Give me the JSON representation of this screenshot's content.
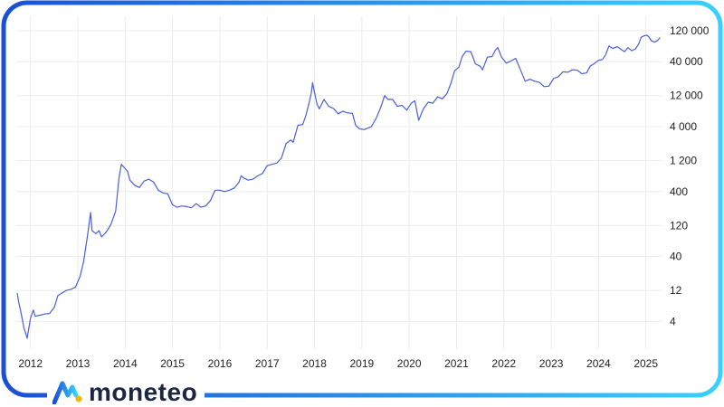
{
  "brand": {
    "name": "moneteo",
    "colors": {
      "gradient_start": "#1a4fd6",
      "gradient_end": "#39d0ff",
      "text": "#1c2541"
    }
  },
  "chart_data": {
    "type": "line",
    "title": "",
    "xlabel": "",
    "ylabel": "",
    "y_scale": "log",
    "grid": true,
    "legend": "none",
    "line_color": "#4a5fd4",
    "xlim": [
      2011.7,
      2025.35
    ],
    "ylim": [
      1.5,
      200000
    ],
    "x_ticks": [
      {
        "value": 2012,
        "label": "2012"
      },
      {
        "value": 2013,
        "label": "2013"
      },
      {
        "value": 2014,
        "label": "2014"
      },
      {
        "value": 2015,
        "label": "2015"
      },
      {
        "value": 2016,
        "label": "2016"
      },
      {
        "value": 2017,
        "label": "2017"
      },
      {
        "value": 2018,
        "label": "2018"
      },
      {
        "value": 2019,
        "label": "2019"
      },
      {
        "value": 2020,
        "label": "2020"
      },
      {
        "value": 2021,
        "label": "2021"
      },
      {
        "value": 2022,
        "label": "2022"
      },
      {
        "value": 2023,
        "label": "2023"
      },
      {
        "value": 2024,
        "label": "2024"
      },
      {
        "value": 2025,
        "label": "2025"
      }
    ],
    "y_ticks": [
      {
        "value": 4,
        "label": "4"
      },
      {
        "value": 12,
        "label": "12"
      },
      {
        "value": 40,
        "label": "40"
      },
      {
        "value": 120,
        "label": "120"
      },
      {
        "value": 400,
        "label": "400"
      },
      {
        "value": 1200,
        "label": "1 200"
      },
      {
        "value": 4000,
        "label": "4 000"
      },
      {
        "value": 12000,
        "label": "12 000"
      },
      {
        "value": 40000,
        "label": "40 000"
      },
      {
        "value": 120000,
        "label": "120 000"
      }
    ],
    "series": [
      {
        "points": [
          [
            2011.72,
            11
          ],
          [
            2011.75,
            8
          ],
          [
            2011.8,
            5.5
          ],
          [
            2011.86,
            3.2
          ],
          [
            2011.9,
            2.6
          ],
          [
            2011.93,
            2.2
          ],
          [
            2012.0,
            4.5
          ],
          [
            2012.06,
            6
          ],
          [
            2012.1,
            4.8
          ],
          [
            2012.2,
            5
          ],
          [
            2012.3,
            5.2
          ],
          [
            2012.4,
            5.3
          ],
          [
            2012.5,
            6.5
          ],
          [
            2012.58,
            10
          ],
          [
            2012.67,
            11
          ],
          [
            2012.75,
            12
          ],
          [
            2012.85,
            12.5
          ],
          [
            2012.95,
            13.5
          ],
          [
            2013.05,
            20
          ],
          [
            2013.12,
            33
          ],
          [
            2013.2,
            80
          ],
          [
            2013.27,
            190
          ],
          [
            2013.3,
            100
          ],
          [
            2013.38,
            90
          ],
          [
            2013.45,
            100
          ],
          [
            2013.5,
            80
          ],
          [
            2013.6,
            95
          ],
          [
            2013.7,
            125
          ],
          [
            2013.8,
            200
          ],
          [
            2013.87,
            650
          ],
          [
            2013.92,
            1050
          ],
          [
            2014.0,
            900
          ],
          [
            2014.05,
            820
          ],
          [
            2014.1,
            600
          ],
          [
            2014.2,
            500
          ],
          [
            2014.3,
            460
          ],
          [
            2014.4,
            580
          ],
          [
            2014.5,
            620
          ],
          [
            2014.6,
            560
          ],
          [
            2014.7,
            420
          ],
          [
            2014.8,
            380
          ],
          [
            2014.9,
            370
          ],
          [
            2015.0,
            250
          ],
          [
            2015.1,
            230
          ],
          [
            2015.2,
            240
          ],
          [
            2015.3,
            235
          ],
          [
            2015.4,
            225
          ],
          [
            2015.5,
            260
          ],
          [
            2015.6,
            230
          ],
          [
            2015.7,
            240
          ],
          [
            2015.8,
            290
          ],
          [
            2015.9,
            420
          ],
          [
            2016.0,
            420
          ],
          [
            2016.1,
            400
          ],
          [
            2016.2,
            420
          ],
          [
            2016.3,
            450
          ],
          [
            2016.4,
            550
          ],
          [
            2016.45,
            700
          ],
          [
            2016.5,
            650
          ],
          [
            2016.6,
            600
          ],
          [
            2016.7,
            620
          ],
          [
            2016.8,
            700
          ],
          [
            2016.9,
            760
          ],
          [
            2017.0,
            1000
          ],
          [
            2017.1,
            1050
          ],
          [
            2017.2,
            1100
          ],
          [
            2017.3,
            1300
          ],
          [
            2017.4,
            2200
          ],
          [
            2017.5,
            2500
          ],
          [
            2017.55,
            2300
          ],
          [
            2017.65,
            4200
          ],
          [
            2017.75,
            4300
          ],
          [
            2017.82,
            6000
          ],
          [
            2017.88,
            9000
          ],
          [
            2017.93,
            13000
          ],
          [
            2017.96,
            19000
          ],
          [
            2018.0,
            13500
          ],
          [
            2018.05,
            9000
          ],
          [
            2018.1,
            7500
          ],
          [
            2018.2,
            10500
          ],
          [
            2018.3,
            8200
          ],
          [
            2018.4,
            7600
          ],
          [
            2018.5,
            6300
          ],
          [
            2018.6,
            6900
          ],
          [
            2018.7,
            6500
          ],
          [
            2018.8,
            6400
          ],
          [
            2018.87,
            4200
          ],
          [
            2018.95,
            3700
          ],
          [
            2019.05,
            3600
          ],
          [
            2019.2,
            4000
          ],
          [
            2019.3,
            5300
          ],
          [
            2019.4,
            8000
          ],
          [
            2019.48,
            12000
          ],
          [
            2019.55,
            10500
          ],
          [
            2019.65,
            10500
          ],
          [
            2019.75,
            8200
          ],
          [
            2019.85,
            8500
          ],
          [
            2019.95,
            7200
          ],
          [
            2020.05,
            9300
          ],
          [
            2020.12,
            10000
          ],
          [
            2020.2,
            5000
          ],
          [
            2020.3,
            7500
          ],
          [
            2020.4,
            9500
          ],
          [
            2020.5,
            9200
          ],
          [
            2020.6,
            11500
          ],
          [
            2020.7,
            10700
          ],
          [
            2020.8,
            13000
          ],
          [
            2020.88,
            18500
          ],
          [
            2020.96,
            29000
          ],
          [
            2021.05,
            33000
          ],
          [
            2021.12,
            48000
          ],
          [
            2021.2,
            58000
          ],
          [
            2021.3,
            57000
          ],
          [
            2021.4,
            37000
          ],
          [
            2021.5,
            34000
          ],
          [
            2021.55,
            30000
          ],
          [
            2021.65,
            47000
          ],
          [
            2021.75,
            48000
          ],
          [
            2021.82,
            60000
          ],
          [
            2021.87,
            66000
          ],
          [
            2021.95,
            47000
          ],
          [
            2022.05,
            38000
          ],
          [
            2022.15,
            41000
          ],
          [
            2022.25,
            45000
          ],
          [
            2022.35,
            30000
          ],
          [
            2022.45,
            20000
          ],
          [
            2022.55,
            21500
          ],
          [
            2022.65,
            20000
          ],
          [
            2022.75,
            19200
          ],
          [
            2022.85,
            16500
          ],
          [
            2022.95,
            16800
          ],
          [
            2023.05,
            22000
          ],
          [
            2023.15,
            23500
          ],
          [
            2023.25,
            28000
          ],
          [
            2023.35,
            27500
          ],
          [
            2023.45,
            30000
          ],
          [
            2023.55,
            29500
          ],
          [
            2023.65,
            26000
          ],
          [
            2023.75,
            27000
          ],
          [
            2023.82,
            34000
          ],
          [
            2023.9,
            37000
          ],
          [
            2024.0,
            42000
          ],
          [
            2024.08,
            43000
          ],
          [
            2024.15,
            51000
          ],
          [
            2024.22,
            70000
          ],
          [
            2024.3,
            64000
          ],
          [
            2024.4,
            68000
          ],
          [
            2024.5,
            60000
          ],
          [
            2024.55,
            57000
          ],
          [
            2024.62,
            66000
          ],
          [
            2024.7,
            59000
          ],
          [
            2024.78,
            63000
          ],
          [
            2024.85,
            75000
          ],
          [
            2024.9,
            95000
          ],
          [
            2024.96,
            100000
          ],
          [
            2025.02,
            102000
          ],
          [
            2025.06,
            97000
          ],
          [
            2025.12,
            84000
          ],
          [
            2025.18,
            80000
          ],
          [
            2025.24,
            84000
          ],
          [
            2025.3,
            94000
          ]
        ]
      }
    ]
  }
}
